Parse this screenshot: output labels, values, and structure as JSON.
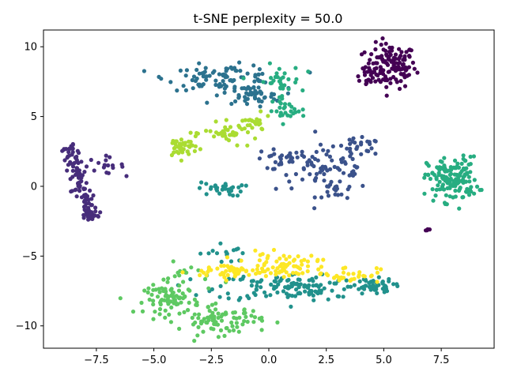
{
  "chart_data": {
    "type": "scatter",
    "title": "t-SNE perplexity = 50.0",
    "xlabel": "",
    "ylabel": "",
    "xlim": [
      -9.8,
      9.8
    ],
    "ylim": [
      -11.6,
      11.2
    ],
    "xticks": [
      -7.5,
      -5.0,
      -2.5,
      0.0,
      2.5,
      5.0,
      7.5
    ],
    "xtick_labels": [
      "−7.5",
      "−5.0",
      "−2.5",
      "0.0",
      "2.5",
      "5.0",
      "7.5"
    ],
    "yticks": [
      -10,
      -5,
      0,
      5,
      10
    ],
    "ytick_labels": [
      "−10",
      "−5",
      "0",
      "5",
      "10"
    ],
    "grid": false,
    "legend": "none",
    "colormap": "viridis",
    "series": [
      {
        "color": "#440154",
        "clusters": [
          {
            "cx": 5.3,
            "cy": 8.6,
            "sx": 0.55,
            "sy": 0.8,
            "n": 130
          },
          {
            "cx": 4.2,
            "cy": 8.0,
            "sx": 0.3,
            "sy": 0.4,
            "n": 15
          },
          {
            "cx": 6.9,
            "cy": -3.1,
            "sx": 0.08,
            "sy": 0.05,
            "n": 5
          }
        ]
      },
      {
        "color": "#472d7b",
        "clusters": [
          {
            "line": [
              -8.7,
              2.9,
              -7.6,
              -2.5
            ],
            "jitter": 0.18,
            "n": 120
          },
          {
            "cx": -7.2,
            "cy": 1.5,
            "sx": 0.45,
            "sy": 0.3,
            "n": 18
          }
        ]
      },
      {
        "color": "#3b528b",
        "clusters": [
          {
            "cx": 2.5,
            "cy": 1.3,
            "sx": 1.1,
            "sy": 0.8,
            "n": 70
          },
          {
            "cx": 0.5,
            "cy": 1.9,
            "sx": 0.6,
            "sy": 0.4,
            "n": 25
          },
          {
            "cx": 3.9,
            "cy": 2.8,
            "sx": 0.5,
            "sy": 0.3,
            "n": 25
          },
          {
            "cx": 3.0,
            "cy": -0.3,
            "sx": 0.45,
            "sy": 0.5,
            "n": 20
          }
        ]
      },
      {
        "color": "#2c728e",
        "clusters": [
          {
            "cx": -2.0,
            "cy": 7.8,
            "sx": 1.2,
            "sy": 0.45,
            "n": 90
          },
          {
            "cx": -0.8,
            "cy": 6.5,
            "sx": 0.7,
            "sy": 0.35,
            "n": 45
          }
        ]
      },
      {
        "color": "#21918c",
        "clusters": [
          {
            "cx": 1.3,
            "cy": -7.2,
            "sx": 1.8,
            "sy": 0.5,
            "n": 140
          },
          {
            "cx": 4.5,
            "cy": -7.1,
            "sx": 0.45,
            "sy": 0.25,
            "n": 35
          },
          {
            "cx": -2.1,
            "cy": -0.2,
            "sx": 0.5,
            "sy": 0.25,
            "n": 30
          },
          {
            "cx": -2.0,
            "cy": -4.8,
            "sx": 0.5,
            "sy": 0.4,
            "n": 15
          }
        ]
      },
      {
        "color": "#27ad81",
        "clusters": [
          {
            "cx": 8.0,
            "cy": 0.5,
            "sx": 0.55,
            "sy": 0.8,
            "n": 150
          },
          {
            "cx": 0.4,
            "cy": 7.5,
            "sx": 0.5,
            "sy": 0.6,
            "n": 35
          },
          {
            "cx": 0.8,
            "cy": 5.4,
            "sx": 0.4,
            "sy": 0.3,
            "n": 25
          }
        ]
      },
      {
        "color": "#5ec962",
        "clusters": [
          {
            "cx": -4.2,
            "cy": -8.1,
            "sx": 0.6,
            "sy": 0.5,
            "n": 80
          },
          {
            "cx": -2.1,
            "cy": -9.6,
            "sx": 0.9,
            "sy": 0.5,
            "n": 85
          },
          {
            "cx": -3.5,
            "cy": -6.5,
            "sx": 0.6,
            "sy": 0.5,
            "n": 20
          }
        ]
      },
      {
        "color": "#aadc32",
        "clusters": [
          {
            "cx": -3.8,
            "cy": 2.8,
            "sx": 0.35,
            "sy": 0.4,
            "n": 40
          },
          {
            "cx": -1.6,
            "cy": 3.8,
            "sx": 0.6,
            "sy": 0.35,
            "n": 40
          },
          {
            "cx": -0.7,
            "cy": 4.5,
            "sx": 0.4,
            "sy": 0.3,
            "n": 20
          }
        ]
      },
      {
        "color": "#fde725",
        "clusters": [
          {
            "cx": -1.5,
            "cy": -6.1,
            "sx": 1.0,
            "sy": 0.3,
            "n": 55
          },
          {
            "cx": 0.6,
            "cy": -5.6,
            "sx": 0.8,
            "sy": 0.4,
            "n": 60
          },
          {
            "cx": 3.4,
            "cy": -6.3,
            "sx": 0.7,
            "sy": 0.3,
            "n": 35
          }
        ]
      }
    ]
  }
}
